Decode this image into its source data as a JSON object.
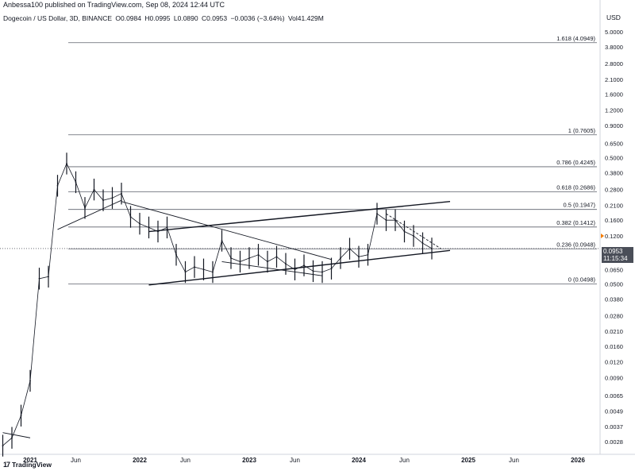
{
  "header": {
    "published": "Anbessa100 published on TradingView.com, Sep 08, 2024 12:44 UTC",
    "symbol": "Dogecoin / US Dollar, 3D, BINANCE",
    "open": "O0.0984",
    "high": "H0.0995",
    "low": "L0.0890",
    "close": "C0.0953",
    "change": "−0.0036 (−3.64%)",
    "volume": "Vol41.429M"
  },
  "footer": {
    "brand": "TradingView",
    "logo": "17"
  },
  "price_tag": {
    "price": "0.0953",
    "timer": "11:15:34"
  },
  "colors": {
    "line": "#131722",
    "grid": "#e0e3eb",
    "candle": "#131722",
    "accent": "#f57c00",
    "tag_bg": "#4a4e58"
  },
  "chart_data": {
    "type": "line",
    "title": "Dogecoin / US Dollar, 3D, BINANCE",
    "ylabel": "USD",
    "scale": "log",
    "ylim": [
      0.0028,
      5.0
    ],
    "y_ticks": [
      "5.0000",
      "3.8000",
      "2.8000",
      "2.1000",
      "1.6000",
      "1.2000",
      "0.9000",
      "0.6500",
      "0.5000",
      "0.3800",
      "0.2800",
      "0.2100",
      "0.1600",
      "0.1200",
      "0.0953",
      "0.0650",
      "0.0500",
      "0.0380",
      "0.0280",
      "0.0210",
      "0.0160",
      "0.0120",
      "0.0090",
      "0.0065",
      "0.0049",
      "0.0037",
      "0.0028"
    ],
    "x_ticks": [
      "2021",
      "Jun",
      "2022",
      "Jun",
      "2023",
      "Jun",
      "2024",
      "Jun",
      "2025",
      "Jun",
      "2026"
    ],
    "fib_levels": [
      {
        "label": "1.618 (4.0949)",
        "value": 4.0949
      },
      {
        "label": "1 (0.7605)",
        "value": 0.7605
      },
      {
        "label": "0.786 (0.4245)",
        "value": 0.4245
      },
      {
        "label": "0.618 (0.2686)",
        "value": 0.2686
      },
      {
        "label": "0.5 (0.1947)",
        "value": 0.1947
      },
      {
        "label": "0.382 (0.1412)",
        "value": 0.1412
      },
      {
        "label": "0.236 (0.0948)",
        "value": 0.0948
      },
      {
        "label": "0 (0.0498)",
        "value": 0.0498
      }
    ],
    "series": [
      {
        "x": [
          "2020-10",
          "2020-11",
          "2020-12",
          "2021-01",
          "2021-02",
          "2021-03",
          "2021-04",
          "2021-05",
          "2021-06",
          "2021-07",
          "2021-08",
          "2021-09",
          "2021-10",
          "2021-11",
          "2021-12",
          "2022-01",
          "2022-02",
          "2022-03",
          "2022-04",
          "2022-05",
          "2022-06",
          "2022-07",
          "2022-08",
          "2022-09",
          "2022-10",
          "2022-11",
          "2022-12",
          "2023-01",
          "2023-02",
          "2023-03",
          "2023-04",
          "2023-05",
          "2023-06",
          "2023-07",
          "2023-08",
          "2023-09",
          "2023-10",
          "2023-11",
          "2023-12",
          "2024-01",
          "2024-02",
          "2024-03",
          "2024-04",
          "2024-05",
          "2024-06",
          "2024-07",
          "2024-08",
          "2024-09"
        ],
        "values": [
          0.0026,
          0.003,
          0.0045,
          0.0085,
          0.055,
          0.057,
          0.3,
          0.45,
          0.32,
          0.2,
          0.28,
          0.23,
          0.24,
          0.26,
          0.17,
          0.15,
          0.14,
          0.13,
          0.14,
          0.085,
          0.062,
          0.068,
          0.065,
          0.062,
          0.11,
          0.08,
          0.075,
          0.08,
          0.085,
          0.075,
          0.082,
          0.072,
          0.065,
          0.07,
          0.063,
          0.062,
          0.066,
          0.08,
          0.095,
          0.082,
          0.085,
          0.18,
          0.16,
          0.16,
          0.13,
          0.12,
          0.105,
          0.0953
        ]
      }
    ],
    "trendlines": [
      {
        "from": [
          "2020-10",
          0.0033
        ],
        "to": [
          "2021-01",
          0.003
        ]
      },
      {
        "from": [
          "2021-04",
          0.135
        ],
        "to": [
          "2021-11",
          0.23
        ]
      },
      {
        "from": [
          "2021-11",
          0.225
        ],
        "to": [
          "2023-10",
          0.078
        ]
      },
      {
        "from": [
          "2022-02",
          0.13
        ],
        "to": [
          "2024-11",
          0.225
        ]
      },
      {
        "from": [
          "2022-02",
          0.049
        ],
        "to": [
          "2024-11",
          0.092
        ]
      },
      {
        "from": [
          "2022-10",
          0.075
        ],
        "to": [
          "2023-09",
          0.058
        ]
      },
      {
        "from": [
          "2024-04",
          0.18
        ],
        "to": [
          "2024-10",
          0.095
        ]
      }
    ]
  }
}
